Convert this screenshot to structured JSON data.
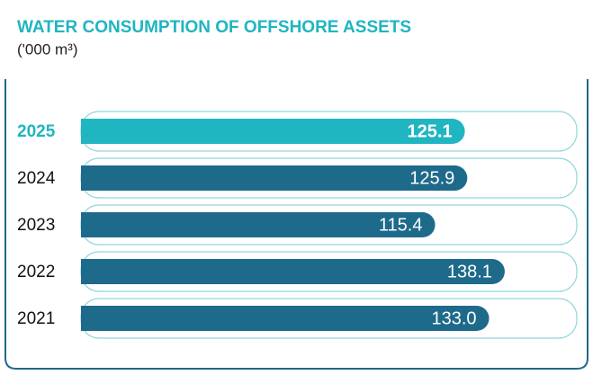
{
  "chart_data": {
    "type": "bar",
    "title": "WATER CONSUMPTION OF OFFSHORE ASSETS",
    "subtitle": "('000 m³)",
    "categories": [
      "2025",
      "2024",
      "2023",
      "2022",
      "2021"
    ],
    "values": [
      125.1,
      125.9,
      115.4,
      138.1,
      133
    ],
    "value_labels": [
      "125.1",
      "125.9",
      "115.4",
      "138.1",
      "133.0"
    ],
    "colors": [
      "#1fb5c1",
      "#1e6a8a",
      "#1e6a8a",
      "#1e6a8a",
      "#1e6a8a"
    ]
  }
}
